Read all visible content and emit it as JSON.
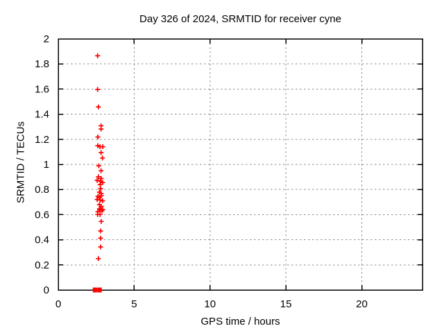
{
  "chart_data": {
    "type": "scatter",
    "title": "Day 326 of 2024, SRMTID for receiver cyne",
    "xlabel": "GPS time / hours",
    "ylabel": "SRMTID / TECUs",
    "xlim": [
      0,
      24
    ],
    "ylim": [
      0,
      2
    ],
    "x_tick_values": [
      0,
      5,
      10,
      15,
      20
    ],
    "x_tick_labels": [
      "0",
      "5",
      "10",
      "15",
      "20"
    ],
    "y_tick_values": [
      0,
      0.2,
      0.4,
      0.6,
      0.8,
      1,
      1.2,
      1.4,
      1.6,
      1.8,
      2
    ],
    "y_tick_labels": [
      "0",
      "0.2",
      "0.4",
      "0.6",
      "0.8",
      "1",
      "1.2",
      "1.4",
      "1.6",
      "1.8",
      "2"
    ],
    "grid": true,
    "legend": "none",
    "series_name": "SRMTID",
    "marker": {
      "shape": "plus",
      "color": "#ff0000",
      "size": 7,
      "stroke_width": 1.7
    },
    "points": [
      [
        2.59,
        1.865
      ],
      [
        2.59,
        1.597
      ],
      [
        2.64,
        1.458
      ],
      [
        2.82,
        1.307
      ],
      [
        2.82,
        1.282
      ],
      [
        2.61,
        1.218
      ],
      [
        2.6,
        1.149
      ],
      [
        2.75,
        1.141
      ],
      [
        2.93,
        1.141
      ],
      [
        2.82,
        1.094
      ],
      [
        2.91,
        1.051
      ],
      [
        2.67,
        0.989
      ],
      [
        2.82,
        0.95
      ],
      [
        2.64,
        0.901
      ],
      [
        2.83,
        0.888
      ],
      [
        2.56,
        0.873
      ],
      [
        2.79,
        0.865
      ],
      [
        2.92,
        0.856
      ],
      [
        2.76,
        0.84
      ],
      [
        2.79,
        0.807
      ],
      [
        2.71,
        0.779
      ],
      [
        2.83,
        0.768
      ],
      [
        2.83,
        0.751
      ],
      [
        2.61,
        0.746
      ],
      [
        2.74,
        0.737
      ],
      [
        2.56,
        0.721
      ],
      [
        2.76,
        0.716
      ],
      [
        2.92,
        0.71
      ],
      [
        2.71,
        0.68
      ],
      [
        2.83,
        0.666
      ],
      [
        2.71,
        0.646
      ],
      [
        2.92,
        0.641
      ],
      [
        2.76,
        0.641
      ],
      [
        2.88,
        0.63
      ],
      [
        2.61,
        0.624
      ],
      [
        2.59,
        0.601
      ],
      [
        2.75,
        0.601
      ],
      [
        2.83,
        0.546
      ],
      [
        2.79,
        0.47
      ],
      [
        2.79,
        0.412
      ],
      [
        2.79,
        0.343
      ],
      [
        2.64,
        0.25
      ]
    ],
    "zero_cluster": {
      "description": "dense saturated markers on the x-axis rendered as filled squares",
      "marker": "filled-square",
      "y": 0,
      "x": [
        2.42,
        2.72
      ]
    }
  },
  "colors": {
    "marker": "#ff0000",
    "grid": "#8c8c8c",
    "axis": "#000000",
    "text": "#000000",
    "background": "#ffffff"
  }
}
